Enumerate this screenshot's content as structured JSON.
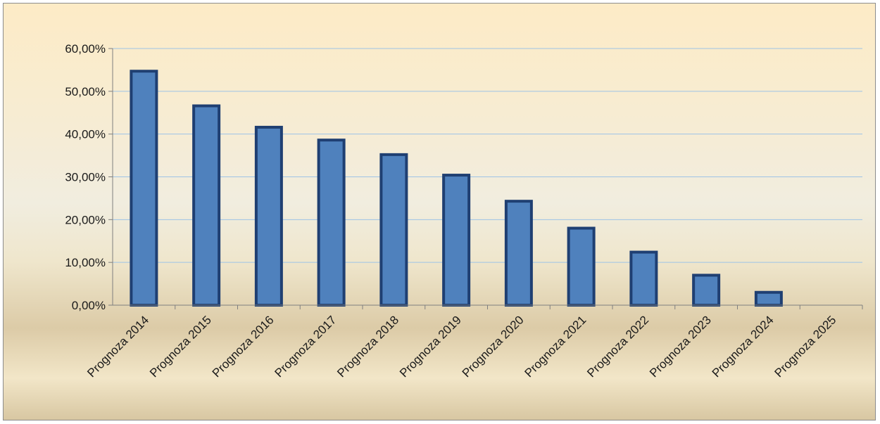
{
  "chart_data": {
    "type": "bar",
    "categories": [
      "Prognoza 2014",
      "Prognoza 2015",
      "Prognoza 2016",
      "Prognoza 2017",
      "Prognoza 2018",
      "Prognoza 2019",
      "Prognoza 2020",
      "Prognoza 2021",
      "Prognoza 2022",
      "Prognoza 2023",
      "Prognoza 2024",
      "Prognoza 2025"
    ],
    "values": [
      54.7,
      46.6,
      41.6,
      38.6,
      35.2,
      30.4,
      24.3,
      18.0,
      12.4,
      7.0,
      3.0,
      0
    ],
    "title": "",
    "xlabel": "",
    "ylabel": "",
    "ylim": [
      0,
      60
    ],
    "y_ticks": [
      "0,00%",
      "10,00%",
      "20,00%",
      "30,00%",
      "40,00%",
      "50,00%",
      "60,00%"
    ],
    "grid": true,
    "legend": "none",
    "colors": {
      "bar_fill": "#4f81bd",
      "bar_border": "#1f3f72",
      "grid": "#9dc3e6",
      "axis": "#7f7f7f"
    }
  }
}
